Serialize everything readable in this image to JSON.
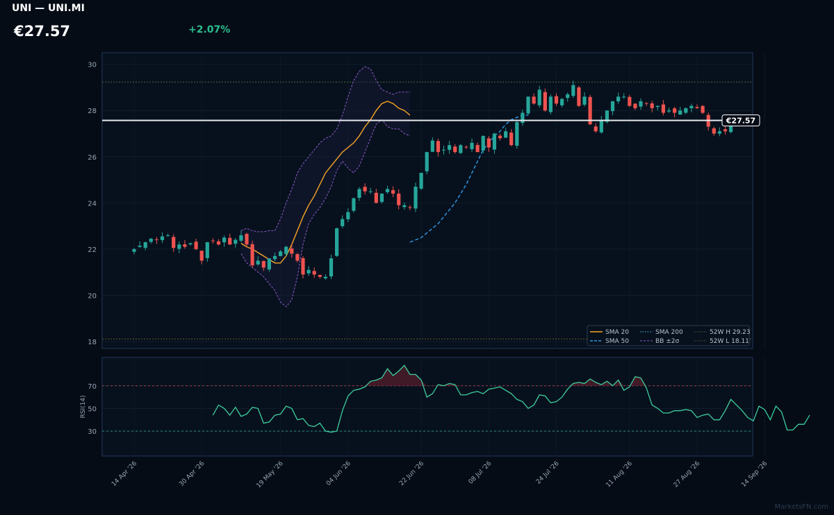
{
  "header": {
    "title": "UNI — UNI.MI",
    "price": "€27.57",
    "change": "+2.07%"
  },
  "watermark": "MarketsFN.com",
  "colors": {
    "background": "#050c16",
    "up": "#26a69a",
    "down": "#ef5350",
    "sma20": "#f5a623",
    "sma50": "#2f9be8",
    "bollinger": "#8a5cc8",
    "rsi": "#3ecf9e",
    "panel_border": "#23385a"
  },
  "chart_data": [
    {
      "type": "candlestick",
      "title": "",
      "ylabel": "",
      "ylim": [
        17.7,
        30.5
      ],
      "yticks": [
        18,
        20,
        22,
        24,
        26,
        28,
        30
      ],
      "xtick_labels": [
        "14 Apr '26",
        "30 Apr '26",
        "19 May '26",
        "04 Jun '26",
        "22 Jun '26",
        "08 Jul '26",
        "24 Jul '26",
        "11 Aug '26",
        "27 Aug '26",
        "14 Sep '26"
      ],
      "xtick_index": [
        0,
        12,
        26,
        38,
        51,
        63,
        75,
        88,
        100,
        112
      ],
      "last_price": 27.57,
      "last_price_label": "€27.57",
      "high_52w": 29.23,
      "low_52w": 18.11,
      "legend": {
        "placement": "bottom-right",
        "entries": [
          "SMA 20",
          "SMA 200",
          "52W H 29.23",
          "SMA 50",
          "BB ±2σ",
          "52W L 18.11"
        ]
      },
      "closes": [
        22.0,
        22.15,
        22.3,
        22.45,
        22.4,
        22.55,
        22.6,
        22.05,
        22.2,
        22.1,
        22.25,
        22.0,
        21.5,
        22.3,
        22.35,
        22.2,
        22.5,
        22.2,
        22.4,
        22.6,
        22.2,
        21.3,
        21.5,
        21.2,
        21.6,
        21.7,
        21.9,
        22.1,
        21.8,
        21.5,
        20.9,
        21.1,
        20.9,
        20.8,
        20.8,
        21.6,
        22.9,
        23.3,
        23.6,
        24.2,
        24.6,
        24.5,
        24.5,
        24.0,
        24.4,
        24.6,
        24.4,
        23.9,
        23.9,
        23.8,
        24.7,
        25.3,
        26.2,
        26.7,
        26.2,
        26.3,
        26.5,
        26.2,
        26.5,
        26.4,
        26.6,
        26.2,
        26.9,
        26.4,
        27.0,
        26.8,
        27.1,
        26.5,
        27.5,
        27.9,
        28.6,
        28.3,
        28.9,
        28.0,
        28.6,
        28.3,
        28.5,
        28.7,
        29.1,
        28.2,
        28.6,
        27.4,
        27.1,
        27.6,
        28.0,
        28.4,
        28.6,
        28.6,
        28.2,
        28.1,
        28.4,
        28.3,
        28.1,
        28.2,
        27.9,
        28.0,
        27.9,
        28.0,
        28.1,
        28.2,
        28.1,
        27.9,
        27.3,
        27.0,
        27.1,
        27.1,
        27.57
      ],
      "volatility": 0.22,
      "series": [
        {
          "name": "SMA 20",
          "type": "line",
          "x_start_index": 19,
          "values": [
            22.25,
            22.1,
            22.0,
            21.85,
            21.7,
            21.55,
            21.4,
            21.4,
            21.7,
            22.2,
            22.8,
            23.4,
            23.9,
            24.3,
            24.8,
            25.3,
            25.6,
            25.9,
            26.2,
            26.4,
            26.6,
            26.9,
            27.3,
            27.6,
            28.0,
            28.3,
            28.4,
            28.3,
            28.1,
            28.0,
            27.8
          ]
        },
        {
          "name": "SMA 50",
          "type": "line",
          "x_start_index": 49,
          "values": [
            22.3,
            22.4,
            22.5,
            22.7,
            22.9,
            23.1,
            23.4,
            23.7,
            24.0,
            24.4,
            24.8,
            25.3,
            25.8,
            26.3,
            26.6,
            26.9,
            27.1,
            27.4,
            27.6,
            27.7,
            27.8,
            27.8
          ]
        },
        {
          "name": "BB upper",
          "type": "line",
          "x_start_index": 19,
          "values": [
            22.8,
            22.9,
            22.8,
            22.75,
            22.75,
            22.8,
            22.8,
            23.3,
            24.0,
            24.6,
            25.3,
            25.7,
            26.0,
            26.3,
            26.6,
            26.8,
            26.9,
            27.2,
            27.8,
            28.6,
            29.3,
            29.7,
            29.9,
            29.8,
            29.3,
            28.9,
            28.8,
            28.7,
            28.8,
            28.8,
            28.8
          ]
        },
        {
          "name": "BB lower",
          "type": "line",
          "x_start_index": 19,
          "values": [
            21.8,
            21.4,
            21.2,
            21.0,
            20.8,
            20.5,
            20.2,
            19.7,
            19.5,
            19.8,
            20.8,
            22.2,
            23.1,
            23.5,
            23.8,
            24.2,
            24.7,
            25.4,
            25.8,
            25.5,
            25.3,
            25.6,
            26.2,
            26.8,
            27.4,
            27.6,
            27.3,
            27.2,
            27.2,
            27.0,
            26.9
          ]
        }
      ]
    },
    {
      "type": "line",
      "ylabel": "RSI(14)",
      "ylim": [
        8,
        95
      ],
      "yticks": [
        30,
        50,
        70
      ],
      "overbought": 70,
      "oversold": 30,
      "x_start_index": 14,
      "series": [
        {
          "name": "RSI(14)",
          "values": [
            44,
            53,
            50,
            44,
            51,
            43,
            45,
            51,
            50,
            37,
            38,
            44,
            45,
            52,
            50,
            40,
            41,
            35,
            34,
            37,
            30,
            29,
            30,
            48,
            61,
            66,
            67,
            69,
            74,
            75,
            77,
            85,
            79,
            83,
            88,
            80,
            80,
            75,
            60,
            63,
            71,
            70,
            72,
            71,
            62,
            62,
            64,
            65,
            63,
            67,
            68,
            69,
            66,
            63,
            58,
            56,
            50,
            53,
            62,
            61,
            55,
            56,
            60,
            67,
            72,
            73,
            72,
            76,
            73,
            71,
            74,
            70,
            75,
            66,
            69,
            78,
            77,
            68,
            53,
            50,
            46,
            46,
            48,
            48,
            49,
            48,
            42,
            44,
            45,
            40,
            40,
            48,
            58,
            53,
            48,
            42,
            39,
            52,
            49,
            40,
            52,
            47,
            31,
            31,
            36,
            36,
            44
          ]
        }
      ]
    }
  ]
}
